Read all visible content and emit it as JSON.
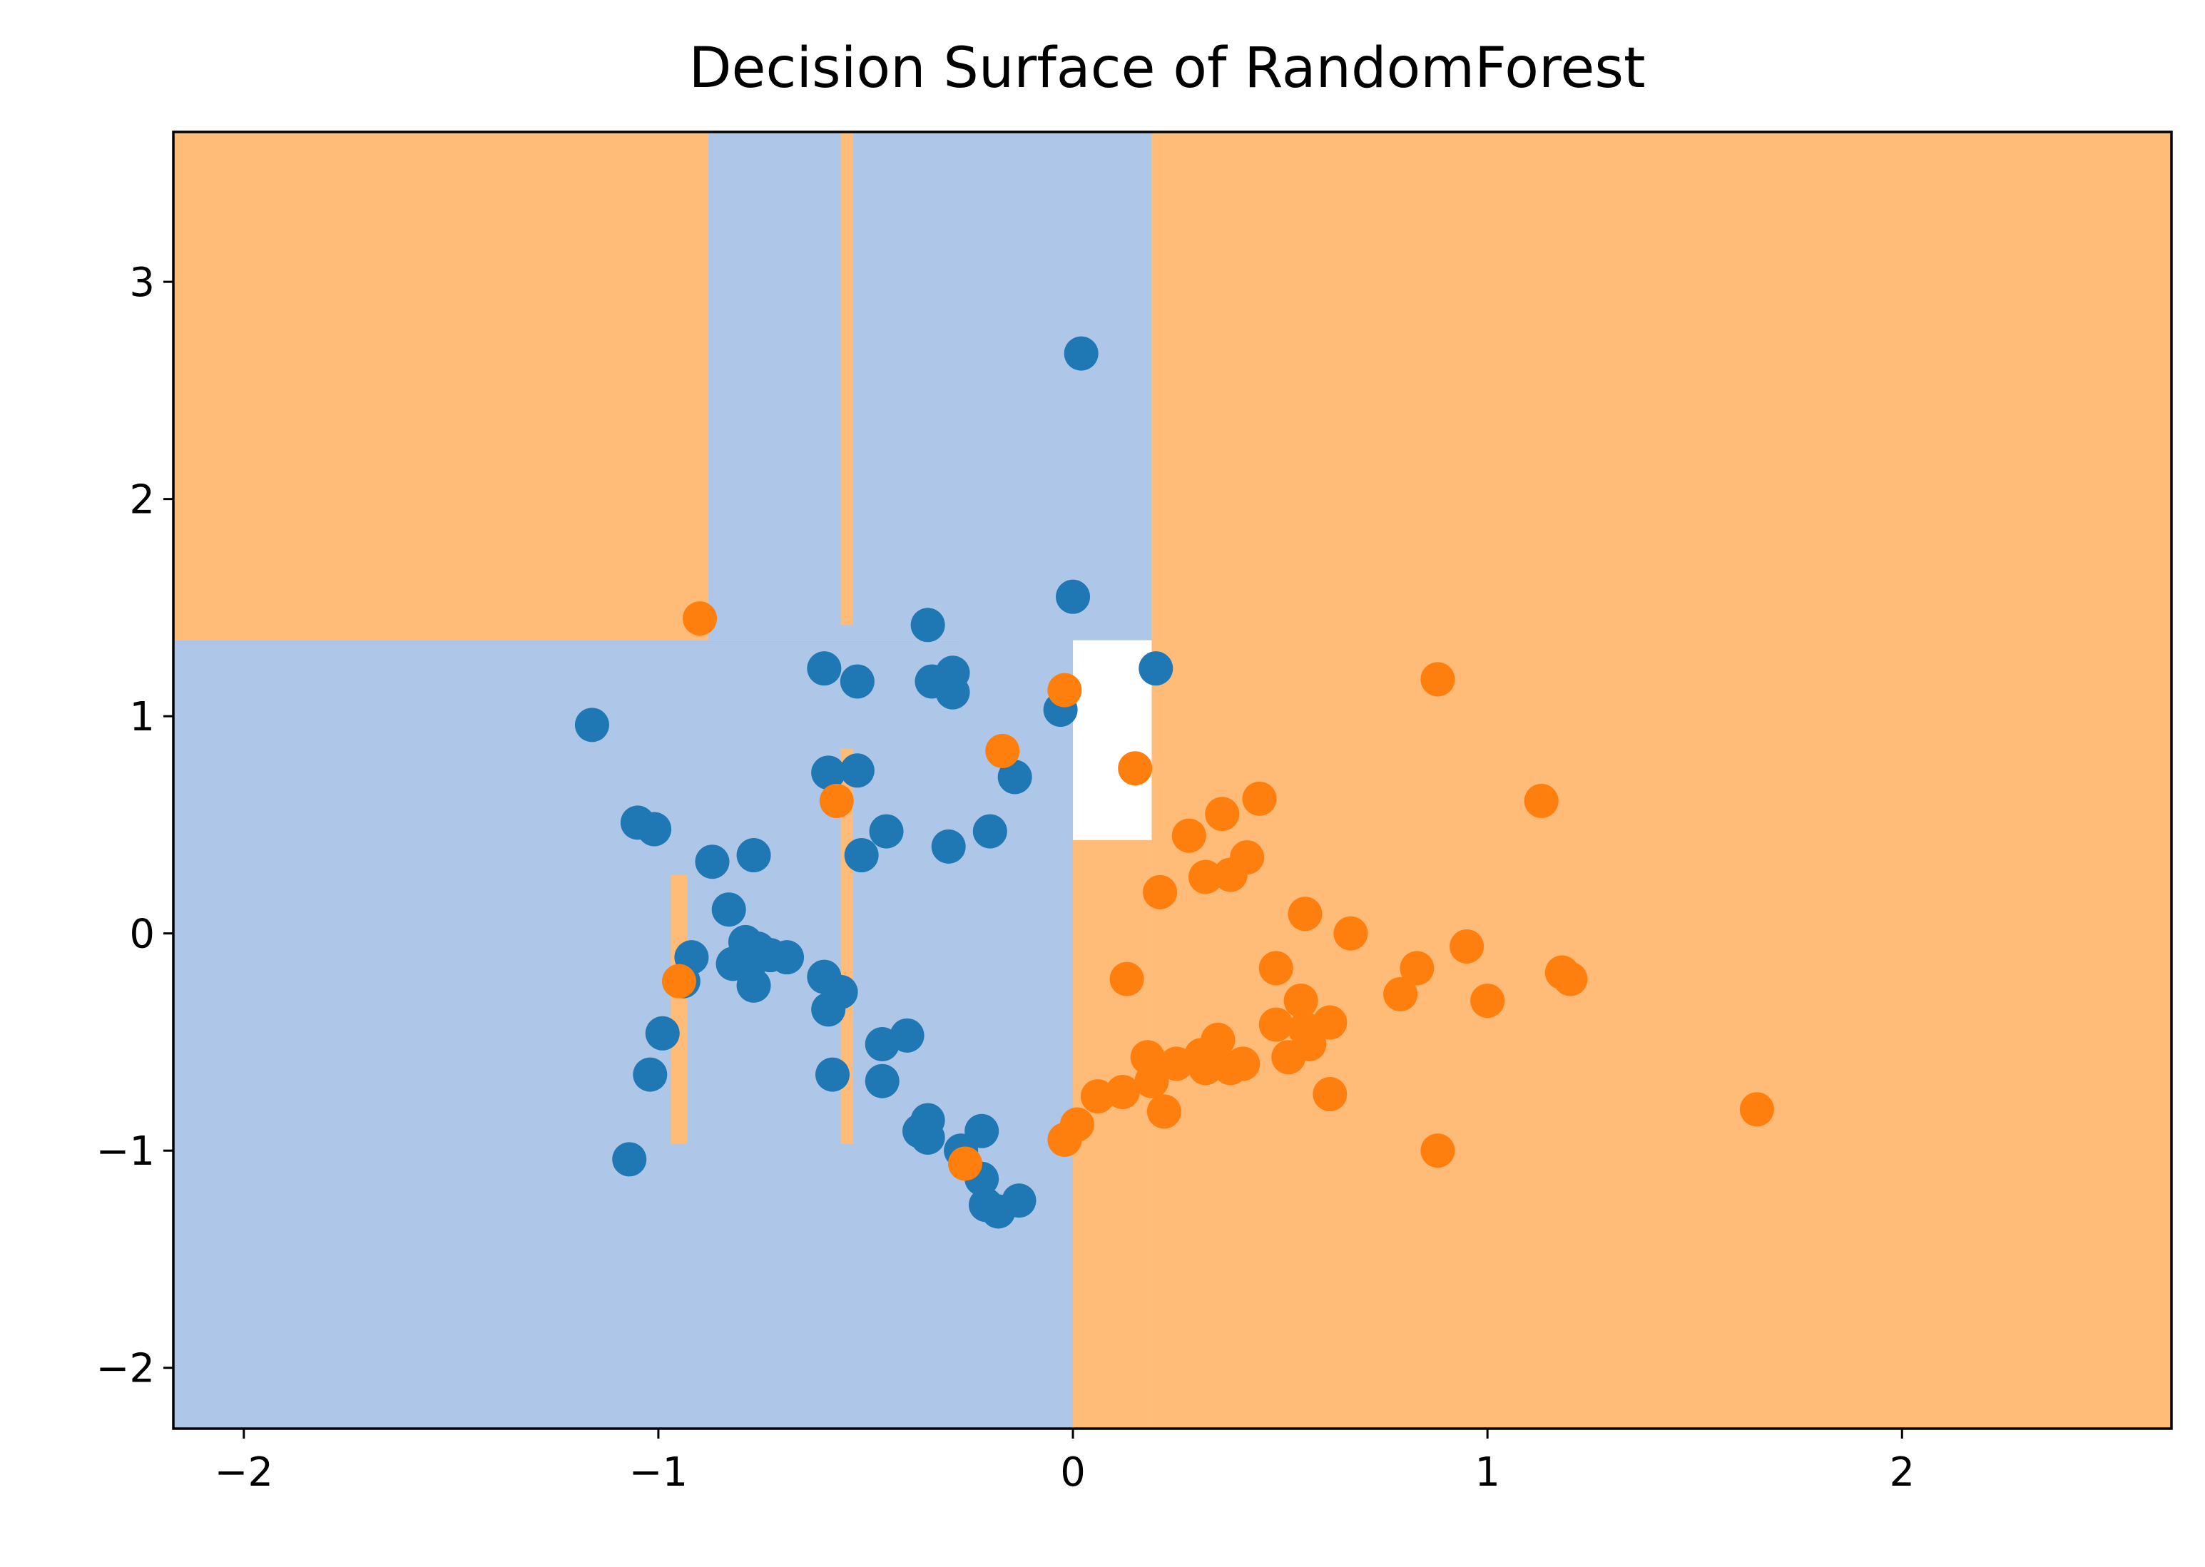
{
  "chart_data": {
    "type": "scatter",
    "title": "Decision Surface of RandomForest",
    "xlabel": "",
    "ylabel": "",
    "xlim": [
      -2.17,
      2.65
    ],
    "ylim": [
      -2.28,
      3.69
    ],
    "xticks": [
      -2,
      -1,
      0,
      1,
      2
    ],
    "xtick_labels": [
      "−2",
      "−1",
      "0",
      "1",
      "2"
    ],
    "yticks": [
      -2,
      -1,
      0,
      1,
      2,
      3
    ],
    "ytick_labels": [
      "−2",
      "−1",
      "0",
      "1",
      "2",
      "3"
    ],
    "grid": false,
    "colors": {
      "region_class0": "#aec7e8",
      "region_class1": "#ffbb78",
      "class0": "#1f77b4",
      "class1": "#ff7f0e"
    },
    "decision_regions": {
      "class0": [
        [
          -2.17,
          -2.28,
          0.0,
          1.35
        ],
        [
          -0.88,
          1.35,
          0.19,
          3.69
        ],
        [
          -0.27,
          0.43,
          0.0,
          1.35
        ],
        [
          -0.27,
          0.23,
          -0.09,
          0.43
        ],
        [
          -0.27,
          -0.42,
          -0.1,
          0.23
        ],
        [
          -0.27,
          -0.95,
          -0.1,
          -0.52
        ]
      ],
      "class1": [
        [
          -2.17,
          1.35,
          -0.88,
          3.69
        ],
        [
          0.19,
          -2.28,
          2.65,
          3.69
        ],
        [
          0.0,
          -2.28,
          0.19,
          0.43
        ],
        [
          -0.56,
          1.42,
          -0.53,
          3.69
        ],
        [
          -0.56,
          -0.97,
          -0.53,
          0.85
        ],
        [
          -0.97,
          -0.97,
          -0.93,
          0.27
        ]
      ]
    },
    "series": [
      {
        "class": 0,
        "points": [
          [
            0.02,
            2.67
          ],
          [
            0.0,
            1.55
          ],
          [
            -0.35,
            1.42
          ],
          [
            -0.6,
            1.22
          ],
          [
            -0.52,
            1.16
          ],
          [
            -0.34,
            1.16
          ],
          [
            -0.29,
            1.2
          ],
          [
            -0.29,
            1.11
          ],
          [
            -0.03,
            1.03
          ],
          [
            0.2,
            1.22
          ],
          [
            -1.16,
            0.96
          ],
          [
            -0.59,
            0.74
          ],
          [
            -0.52,
            0.75
          ],
          [
            -0.14,
            0.72
          ],
          [
            -1.05,
            0.51
          ],
          [
            -1.01,
            0.48
          ],
          [
            -0.45,
            0.47
          ],
          [
            -0.2,
            0.47
          ],
          [
            -0.3,
            0.4
          ],
          [
            -0.51,
            0.36
          ],
          [
            -0.87,
            0.33
          ],
          [
            -0.77,
            0.36
          ],
          [
            -0.83,
            0.11
          ],
          [
            -0.79,
            -0.04
          ],
          [
            -0.76,
            -0.07
          ],
          [
            -0.69,
            -0.11
          ],
          [
            -0.73,
            -0.1
          ],
          [
            -0.78,
            -0.14
          ],
          [
            -0.82,
            -0.14
          ],
          [
            -0.92,
            -0.11
          ],
          [
            -0.77,
            -0.24
          ],
          [
            -0.94,
            -0.22
          ],
          [
            -0.6,
            -0.2
          ],
          [
            -0.56,
            -0.27
          ],
          [
            -0.59,
            -0.35
          ],
          [
            -0.99,
            -0.46
          ],
          [
            -0.4,
            -0.47
          ],
          [
            -0.46,
            -0.51
          ],
          [
            -1.02,
            -0.65
          ],
          [
            -0.58,
            -0.65
          ],
          [
            -0.46,
            -0.68
          ],
          [
            -0.35,
            -0.86
          ],
          [
            -0.37,
            -0.91
          ],
          [
            -0.35,
            -0.94
          ],
          [
            -0.22,
            -0.91
          ],
          [
            -0.27,
            -1.0
          ],
          [
            -0.22,
            -1.13
          ],
          [
            -0.21,
            -1.25
          ],
          [
            -0.18,
            -1.28
          ],
          [
            -0.13,
            -1.23
          ],
          [
            -1.07,
            -1.04
          ]
        ]
      },
      {
        "class": 1,
        "points": [
          [
            -0.9,
            1.45
          ],
          [
            -0.02,
            1.12
          ],
          [
            0.88,
            1.17
          ],
          [
            -0.17,
            0.84
          ],
          [
            0.15,
            0.76
          ],
          [
            -0.57,
            0.61
          ],
          [
            0.45,
            0.62
          ],
          [
            1.13,
            0.61
          ],
          [
            0.36,
            0.55
          ],
          [
            0.28,
            0.45
          ],
          [
            0.42,
            0.35
          ],
          [
            0.38,
            0.27
          ],
          [
            0.32,
            0.26
          ],
          [
            0.21,
            0.19
          ],
          [
            0.56,
            0.09
          ],
          [
            0.67,
            0.0
          ],
          [
            0.95,
            -0.06
          ],
          [
            0.49,
            -0.16
          ],
          [
            0.83,
            -0.16
          ],
          [
            1.18,
            -0.18
          ],
          [
            1.2,
            -0.21
          ],
          [
            0.13,
            -0.21
          ],
          [
            -0.95,
            -0.22
          ],
          [
            0.79,
            -0.28
          ],
          [
            1.0,
            -0.31
          ],
          [
            0.55,
            -0.31
          ],
          [
            0.49,
            -0.42
          ],
          [
            0.62,
            -0.41
          ],
          [
            0.56,
            -0.44
          ],
          [
            0.57,
            -0.51
          ],
          [
            0.35,
            -0.49
          ],
          [
            0.31,
            -0.56
          ],
          [
            0.52,
            -0.57
          ],
          [
            0.18,
            -0.57
          ],
          [
            0.25,
            -0.6
          ],
          [
            0.41,
            -0.6
          ],
          [
            0.38,
            -0.62
          ],
          [
            0.32,
            -0.62
          ],
          [
            0.19,
            -0.68
          ],
          [
            0.12,
            -0.73
          ],
          [
            0.06,
            -0.75
          ],
          [
            0.62,
            -0.74
          ],
          [
            0.22,
            -0.82
          ],
          [
            0.01,
            -0.88
          ],
          [
            -0.02,
            -0.95
          ],
          [
            0.88,
            -1.0
          ],
          [
            1.65,
            -0.81
          ],
          [
            -0.26,
            -1.06
          ]
        ]
      }
    ]
  }
}
